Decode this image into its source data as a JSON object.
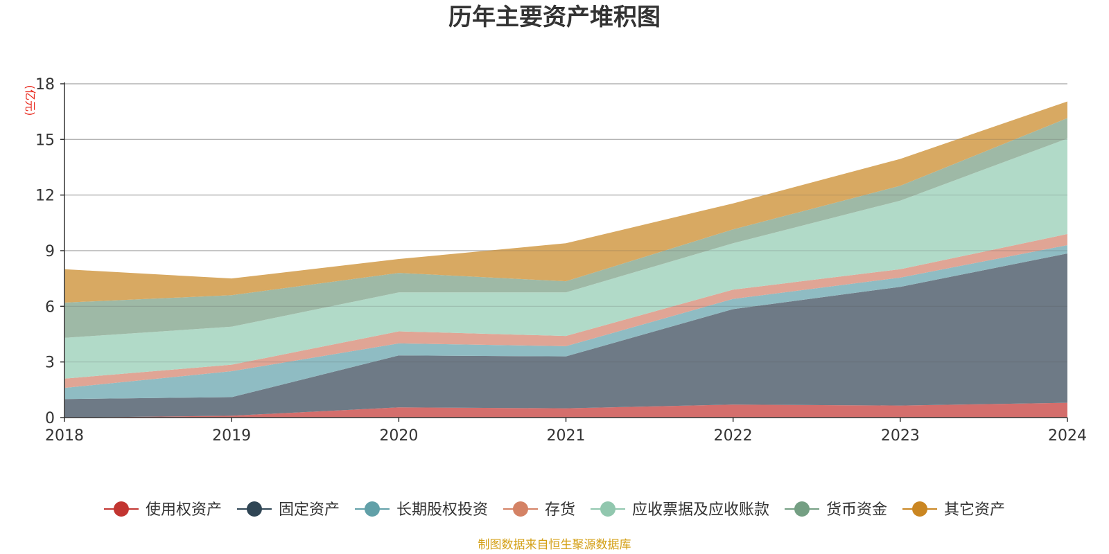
{
  "chart_data": {
    "type": "area",
    "stacked": true,
    "title": "历年主要资产堆积图",
    "unit": "(亿元)",
    "source": "制图数据来自恒生聚源数据库",
    "x": [
      "2018",
      "2019",
      "2020",
      "2021",
      "2022",
      "2023",
      "2024"
    ],
    "ylim": [
      0,
      18
    ],
    "yticks": [
      0,
      3,
      6,
      9,
      12,
      15,
      18
    ],
    "grid": true,
    "legend_position": "bottom",
    "series": [
      {
        "name": "使用权资产",
        "color": "#c23531",
        "fill": "#d46e6c",
        "values": [
          0.0,
          0.1,
          0.55,
          0.5,
          0.7,
          0.65,
          0.8
        ]
      },
      {
        "name": "固定资产",
        "color": "#2f4554",
        "fill": "#6e7a86",
        "values": [
          1.0,
          1.0,
          2.8,
          2.8,
          5.15,
          6.4,
          8.05
        ]
      },
      {
        "name": "长期股权投资",
        "color": "#61a0a8",
        "fill": "#8fbcc3",
        "values": [
          0.6,
          1.4,
          0.65,
          0.55,
          0.55,
          0.5,
          0.45
        ]
      },
      {
        "name": "存货",
        "color": "#d48265",
        "fill": "#e0a595",
        "values": [
          0.5,
          0.35,
          0.65,
          0.55,
          0.5,
          0.45,
          0.6
        ]
      },
      {
        "name": "应收票据及应收账款",
        "color": "#91c7ae",
        "fill": "#b1dac8",
        "values": [
          2.2,
          2.05,
          2.1,
          2.35,
          2.5,
          3.7,
          5.15
        ]
      },
      {
        "name": "货币资金",
        "color": "#749f83",
        "fill": "#9eb9a6",
        "values": [
          1.9,
          1.7,
          1.05,
          0.6,
          0.75,
          0.8,
          1.1
        ]
      },
      {
        "name": "其它资产",
        "color": "#ca8622",
        "fill": "#d8a962",
        "values": [
          1.8,
          0.9,
          0.75,
          2.05,
          1.4,
          1.45,
          0.9
        ]
      }
    ]
  }
}
